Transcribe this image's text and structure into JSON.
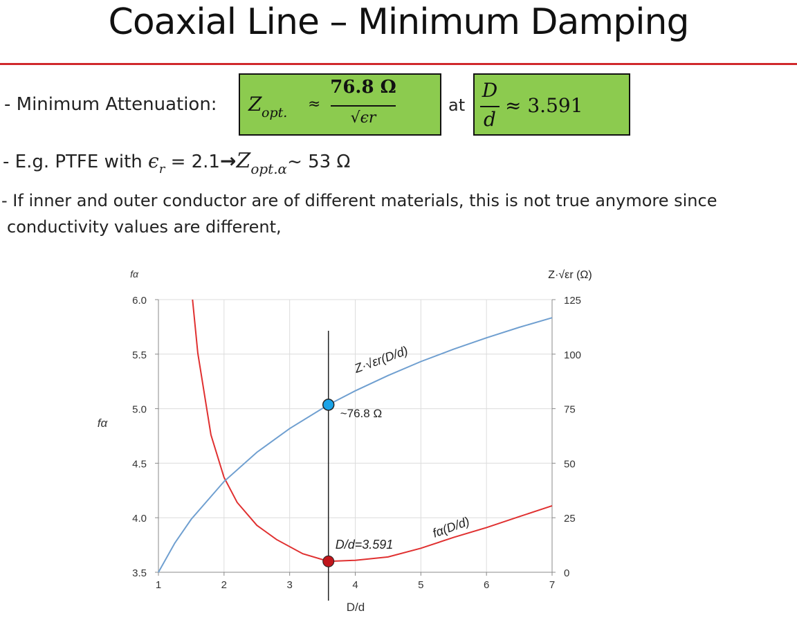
{
  "title": "Coaxial Line – Minimum Damping",
  "bullet1": {
    "label": "- Minimum Attenuation:",
    "z_symbol": "Z",
    "z_subscript": "opt.",
    "approx": "≈",
    "numerator": "76.8 Ω",
    "denominator": "√ϵr",
    "at": "at",
    "d_num": "D",
    "d_den": "d",
    "d_value": "≈ 3.591"
  },
  "bullet2": {
    "prefix": "- E.g. PTFE with",
    "epsilon": "ϵ",
    "epsilon_sub": "r",
    "equals": "= 2.1",
    "arrow": "→",
    "z_symbol": "Z",
    "z_sub": "opt.α",
    "result": "~ 53 Ω"
  },
  "bullet3": {
    "line1": "- If inner and outer conductor are of different materials, this is not true anymore since",
    "line2": "conductivity values are different,"
  },
  "chart_data": {
    "type": "line",
    "xlabel": "D/d",
    "ylabel_left": "fα",
    "ylabel_left_top": "fα",
    "ylabel_right": "Z·√εr (Ω)",
    "xlim": [
      1,
      7
    ],
    "ylim_left": [
      3.5,
      6.0
    ],
    "ylim_right": [
      0,
      125
    ],
    "x_ticks": [
      "1",
      "2",
      "3",
      "4",
      "5",
      "6",
      "7"
    ],
    "y_ticks_left": [
      "3.5",
      "4.0",
      "4.5",
      "5.0",
      "5.5",
      "6.0"
    ],
    "y_ticks_right": [
      "0",
      "25",
      "50",
      "75",
      "100",
      "125"
    ],
    "grid": true,
    "series": [
      {
        "name": "fα(D/d)",
        "axis": "left",
        "color": "#e03030",
        "x": [
          1.52,
          1.6,
          1.8,
          2.0,
          2.2,
          2.5,
          2.8,
          3.2,
          3.591,
          4.0,
          4.5,
          5.0,
          5.5,
          6.0,
          6.5,
          7.0
        ],
        "y": [
          6.0,
          5.51,
          4.76,
          4.37,
          4.14,
          3.93,
          3.8,
          3.67,
          3.6,
          3.61,
          3.64,
          3.72,
          3.82,
          3.91,
          4.01,
          4.11
        ]
      },
      {
        "name": "Z·√εr(D/d)",
        "axis": "right",
        "color": "#6f9fd0",
        "x": [
          1.0,
          1.25,
          1.5,
          2.0,
          2.5,
          3.0,
          3.591,
          4.0,
          4.5,
          5.0,
          5.5,
          6.0,
          6.5,
          7.0
        ],
        "y": [
          0.0,
          13.4,
          24.3,
          41.6,
          55.0,
          65.9,
          76.8,
          83.2,
          90.2,
          96.6,
          102.3,
          107.5,
          112.3,
          116.7
        ]
      }
    ],
    "annotations": {
      "vline_x": 3.591,
      "marker_blue": {
        "x": 3.591,
        "y_right": 76.8,
        "color": "#1aa3e8",
        "label": "~76.8 Ω"
      },
      "marker_red": {
        "x": 3.591,
        "y_left": 3.6,
        "color": "#c0161c",
        "label": "D/d=3.591"
      }
    }
  }
}
